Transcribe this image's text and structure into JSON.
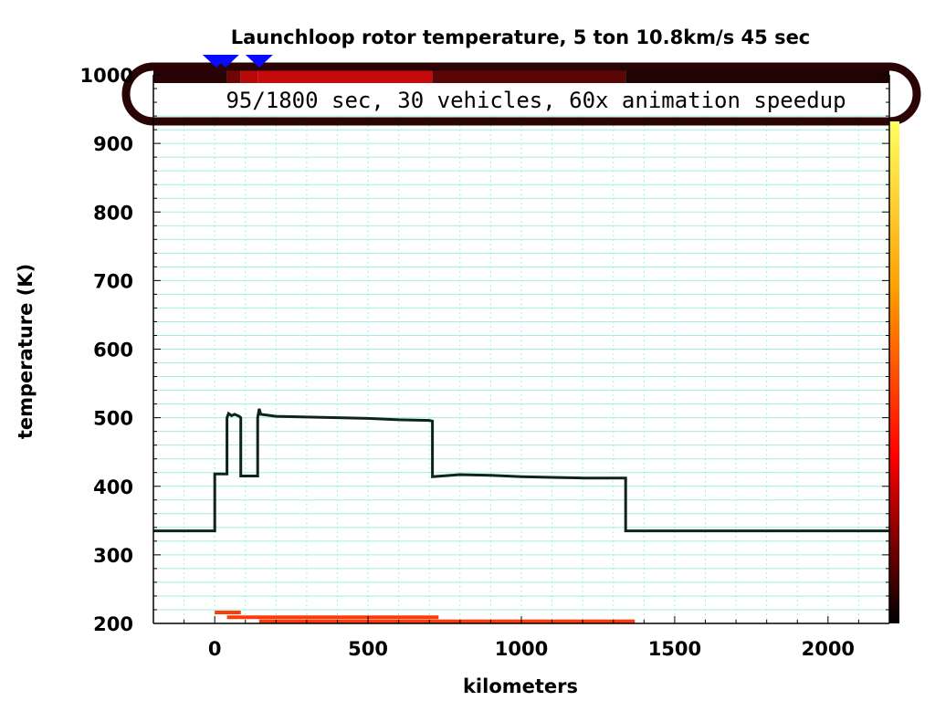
{
  "chart_data": {
    "type": "line",
    "title": "Launchloop rotor temperature, 5 ton  10.8km/s 45 sec",
    "subtitle": "95/1800 sec, 30 vehicles,  60x animation speedup",
    "xlabel": "kilometers",
    "ylabel": "temperature (K)",
    "xlim": [
      -200,
      2200
    ],
    "ylim": [
      200,
      1000
    ],
    "xticks": [
      0,
      500,
      1000,
      1500,
      2000
    ],
    "yticks": [
      200,
      300,
      400,
      500,
      600,
      700,
      800,
      900,
      1000
    ],
    "grid": true,
    "series": [
      {
        "x": [
          -200,
          0,
          0,
          40,
          40,
          45,
          55,
          65,
          80,
          85,
          85,
          140,
          140,
          145,
          150,
          200,
          300,
          400,
          500,
          600,
          700,
          710,
          710,
          800,
          900,
          1000,
          1100,
          1200,
          1340,
          1340,
          2200
        ],
        "y": [
          335,
          335,
          418,
          418,
          500,
          506,
          503,
          505,
          502,
          500,
          415,
          415,
          500,
          513,
          505,
          502,
          501,
          500,
          499,
          497,
          496,
          495,
          414,
          417,
          416,
          414,
          413,
          412,
          412,
          335,
          335
        ]
      }
    ],
    "vehicle_bars": [
      {
        "x_start": 0,
        "x_end": 85,
        "y": 216
      },
      {
        "x_start": 40,
        "x_end": 730,
        "y": 209
      },
      {
        "x_start": 145,
        "x_end": 1370,
        "y": 203
      }
    ],
    "vehicle_markers_x": [
      5,
      35,
      145
    ],
    "colorbar": {
      "colormap": "hot",
      "position": "right",
      "stops": [
        "#000000",
        "#ff0000",
        "#ffa000",
        "#ffff60"
      ]
    },
    "heat_band": {
      "segments": [
        {
          "x_start": -200,
          "x_end": 40,
          "color": "#2a0404"
        },
        {
          "x_start": 40,
          "x_end": 85,
          "color": "#6e0606"
        },
        {
          "x_start": 85,
          "x_end": 140,
          "color": "#b80909"
        },
        {
          "x_start": 140,
          "x_end": 710,
          "color": "#c40a0a"
        },
        {
          "x_start": 710,
          "x_end": 1340,
          "color": "#5a0606"
        },
        {
          "x_start": 1340,
          "x_end": 2200,
          "color": "#200303"
        }
      ]
    },
    "colors": {
      "grid": "#9ff0e0",
      "line": "#0d2418",
      "bars": "#ff3a0a",
      "markers": "#0a0aff"
    }
  }
}
